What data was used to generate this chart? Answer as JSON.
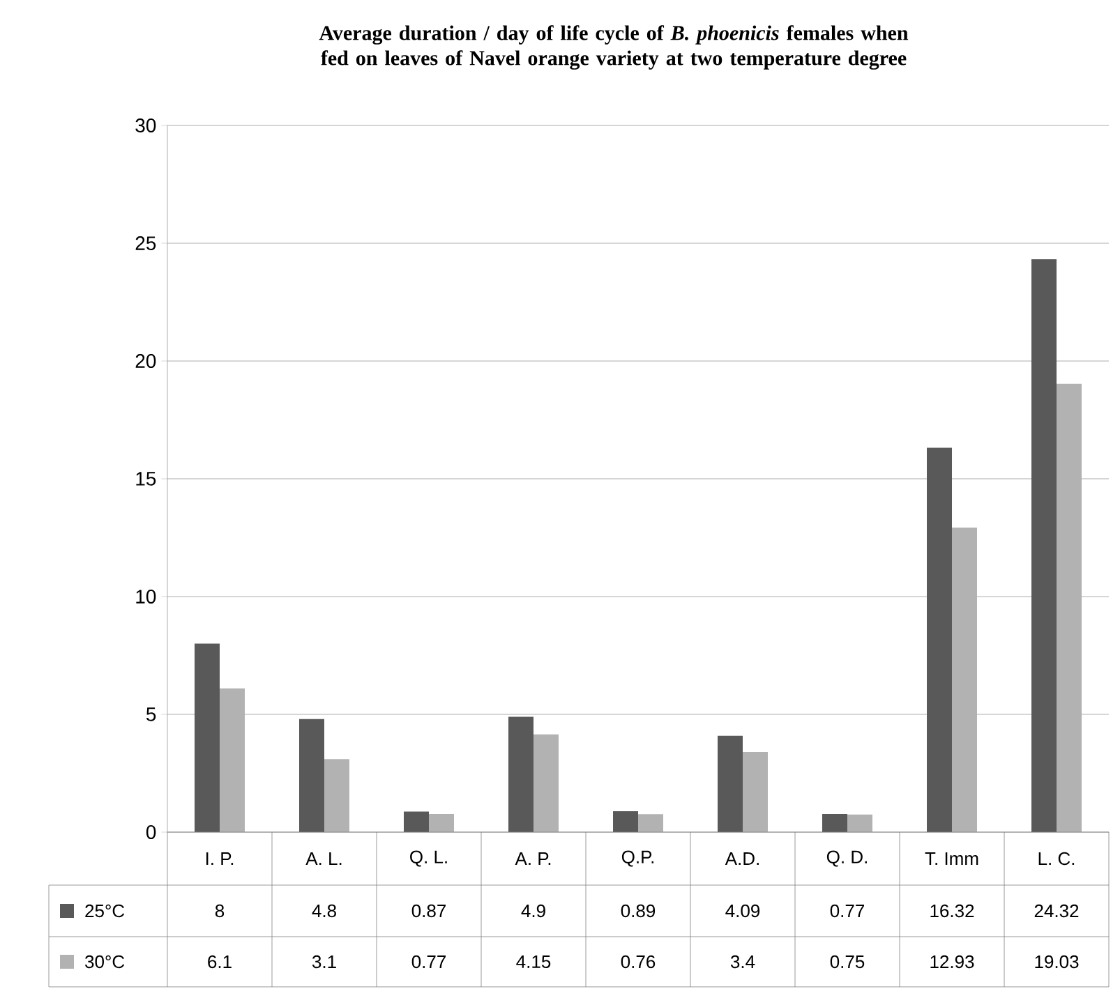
{
  "chart_data": {
    "type": "bar",
    "title": "Average duration / day  of life cycle of *B. phoenicis* females when fed on leaves of Navel orange variety at two temperature degree",
    "categories": [
      "I. P.",
      "A. L.",
      "Q. L.",
      "A. P.",
      "Q.P.",
      "A.D.",
      "Q. D.",
      "T. Imm",
      "L. C."
    ],
    "series": [
      {
        "name": "25°C",
        "color": "#595959",
        "values": [
          8,
          4.8,
          0.87,
          4.9,
          0.89,
          4.09,
          0.77,
          16.32,
          24.32
        ]
      },
      {
        "name": "30°C",
        "color": "#b2b2b2",
        "values": [
          6.1,
          3.1,
          0.77,
          4.15,
          0.76,
          3.4,
          0.75,
          12.93,
          19.03
        ]
      }
    ],
    "ylim": [
      0,
      30
    ],
    "yticks": [
      0,
      5,
      10,
      15,
      20,
      25,
      30
    ],
    "grid": "y",
    "legend": "bottom left",
    "data_labels": true
  }
}
